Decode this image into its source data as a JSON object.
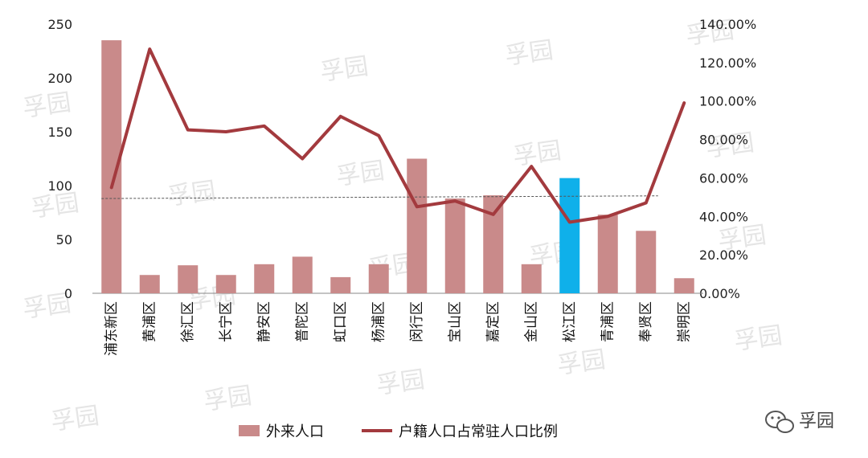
{
  "chart_data": {
    "type": "bar",
    "categories": [
      "浦东新区",
      "黄浦区",
      "徐汇区",
      "长宁区",
      "静安区",
      "普陀区",
      "虹口区",
      "杨浦区",
      "闵行区",
      "宝山区",
      "嘉定区",
      "金山区",
      "松江区",
      "青浦区",
      "奉贤区",
      "崇明区"
    ],
    "series": [
      {
        "name": "外来人口",
        "type": "bar",
        "axis": "left",
        "values": [
          235,
          17,
          26,
          17,
          27,
          34,
          15,
          27,
          125,
          88,
          91,
          27,
          107,
          73,
          58,
          14
        ],
        "color": "#c98a8a",
        "highlight_index": 12,
        "highlight_color": "#0fb0ea"
      },
      {
        "name": "户籍人口占常驻人口比例",
        "type": "line",
        "axis": "right",
        "values": [
          0.55,
          1.27,
          0.85,
          0.84,
          0.87,
          0.7,
          0.92,
          0.82,
          0.45,
          0.48,
          0.41,
          0.66,
          0.37,
          0.4,
          0.47,
          0.99
        ],
        "color": "#a33a3e"
      }
    ],
    "left_axis": {
      "ylim": [
        0,
        250
      ],
      "ticks": [
        "0",
        "50",
        "100",
        "150",
        "200",
        "250"
      ]
    },
    "right_axis": {
      "ylim": [
        0,
        1.4
      ],
      "ticks": [
        "0.00%",
        "20.00%",
        "40.00%",
        "60.00%",
        "80.00%",
        "100.00%",
        "120.00%",
        "140.00%"
      ]
    },
    "trendline": {
      "series": "外来人口",
      "start": 88,
      "end": 90.5
    },
    "legend": {
      "position": "bottom",
      "items": [
        "外来人口",
        "户籍人口占常驻人口比例"
      ]
    },
    "grid": false
  },
  "watermark": "孚园",
  "brand": {
    "name": "孚园",
    "icon": "wechat-icon"
  }
}
